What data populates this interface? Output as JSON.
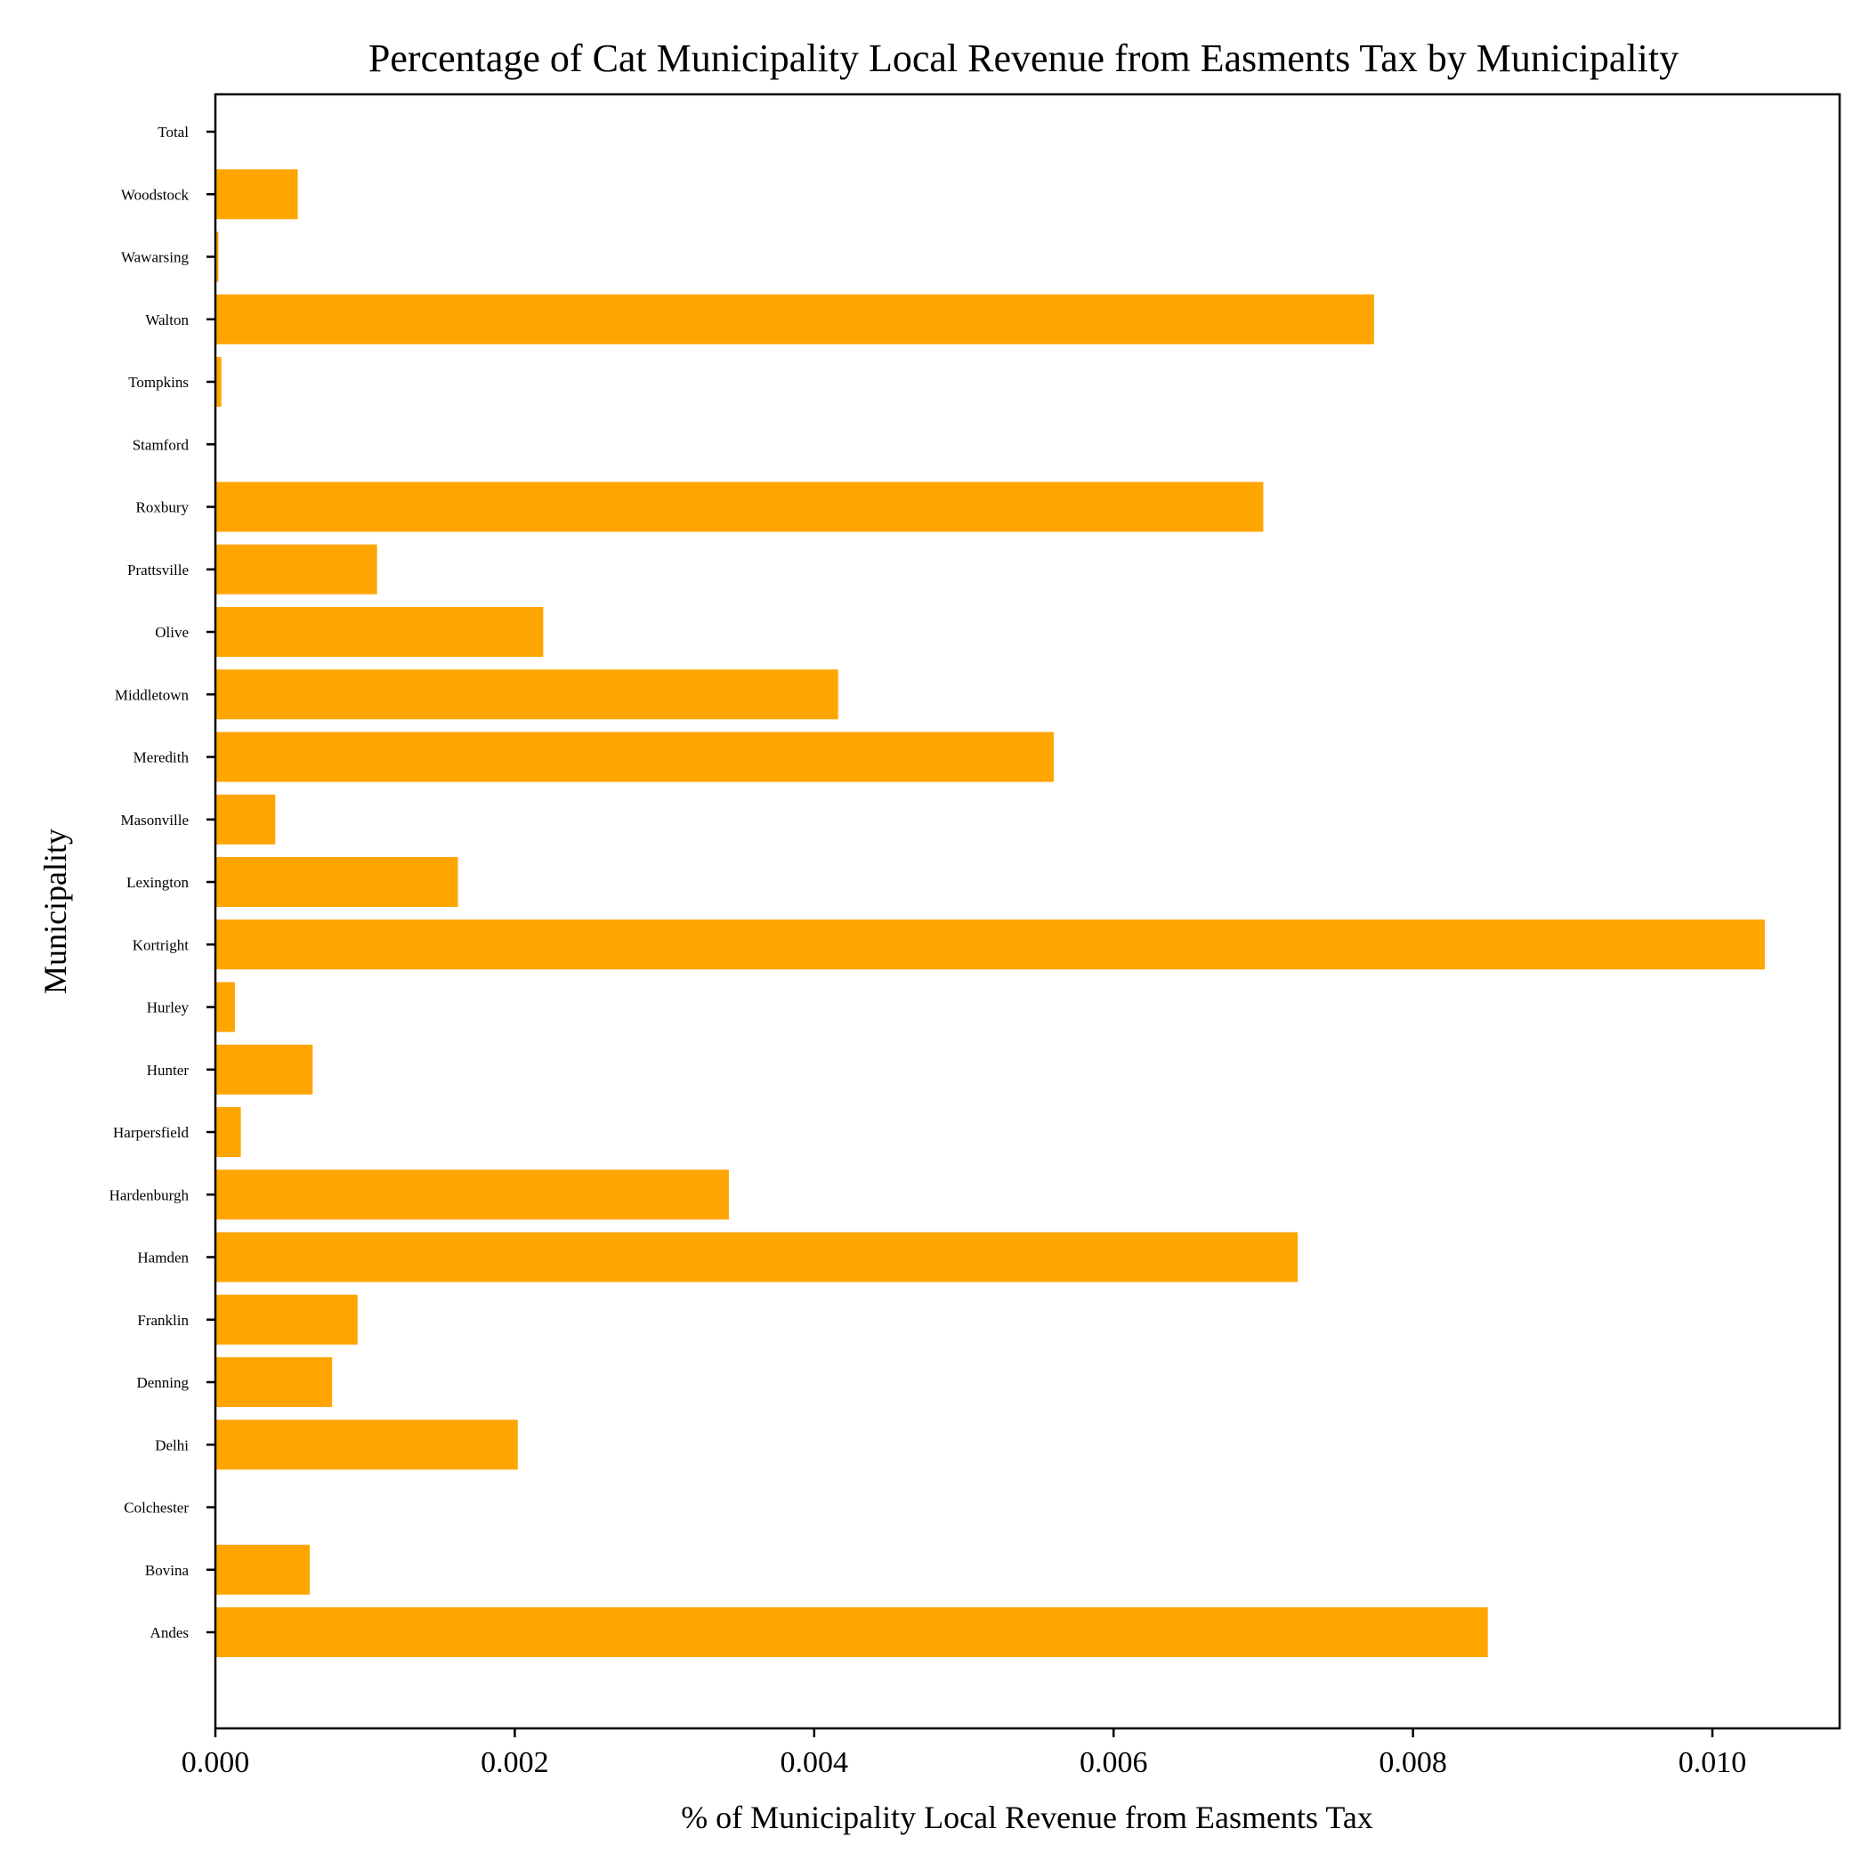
{
  "chart_data": {
    "type": "bar",
    "orientation": "horizontal",
    "title": "Percentage of Cat Municipality Local Revenue from Easments Tax by Municipality",
    "xlabel": "% of Municipality Local Revenue from Easments Tax",
    "ylabel": "Municipality",
    "xlim": [
      0,
      0.01085
    ],
    "x_ticks": [
      "0.000",
      "0.002",
      "0.004",
      "0.006",
      "0.008",
      "0.010"
    ],
    "grid": false,
    "bar_color": "#FFA500",
    "categories": [
      "Andes",
      "Bovina",
      "Colchester",
      "Delhi",
      "Denning",
      "Franklin",
      "Hamden",
      "Hardenburgh",
      "Harpersfield",
      "Hunter",
      "Hurley",
      "Kortright",
      "Lexington",
      "Masonville",
      "Meredith",
      "Middletown",
      "Olive",
      "Prattsville",
      "Roxbury",
      "Stamford",
      "Tompkins",
      "Walton",
      "Wawarsing",
      "Woodstock",
      "Total"
    ],
    "values": [
      0.0085,
      0.00063,
      0.0,
      0.00202,
      0.00078,
      0.00095,
      0.00723,
      0.00343,
      0.00017,
      0.00065,
      0.00013,
      0.01035,
      0.00162,
      0.0004,
      0.0056,
      0.00416,
      0.00219,
      0.00108,
      0.007,
      0.0,
      4e-05,
      0.00774,
      2e-05,
      0.00055,
      0.0
    ]
  }
}
